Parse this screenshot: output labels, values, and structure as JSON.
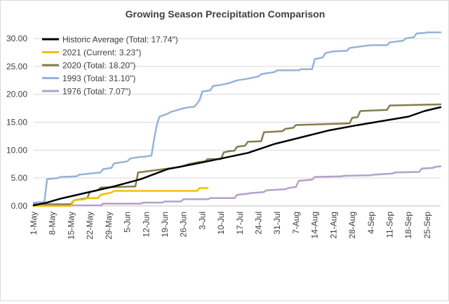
{
  "chart_data": {
    "type": "line",
    "title": "Growing Season Precipitation Comparison",
    "xlabel": "",
    "ylabel": "",
    "ylim": [
      0,
      32
    ],
    "y_ticks": [
      "0.00",
      "5.00",
      "10.00",
      "15.00",
      "20.00",
      "25.00",
      "30.00"
    ],
    "y_tick_values": [
      0,
      5,
      10,
      15,
      20,
      25,
      30
    ],
    "x_ticks": [
      "1-May",
      "8-May",
      "15-May",
      "22-May",
      "29-May",
      "5-Jun",
      "12-Jun",
      "19-Jun",
      "26-Jun",
      "3-Jul",
      "10-Jul",
      "17-Jul",
      "24-Jul",
      "31-Jul",
      "7-Aug",
      "14-Aug",
      "21-Aug",
      "28-Aug",
      "4-Sep",
      "11-Sep",
      "18-Sep",
      "25-Sep"
    ],
    "x_tick_days": [
      0,
      7,
      14,
      21,
      28,
      35,
      42,
      49,
      56,
      63,
      70,
      77,
      84,
      91,
      98,
      105,
      112,
      119,
      126,
      133,
      140,
      147
    ],
    "xlim_days": [
      0,
      152
    ],
    "grid": "horizontal",
    "legend_position": "top-left",
    "series": [
      {
        "name": "Historic Average (Total: 17.74\")",
        "color": "#000000",
        "x": [
          0,
          5,
          10,
          20,
          30,
          40,
          50,
          60,
          70,
          80,
          90,
          100,
          110,
          120,
          130,
          140,
          146,
          152
        ],
        "y": [
          0.1,
          0.6,
          1.3,
          2.4,
          3.5,
          4.8,
          6.6,
          7.5,
          8.5,
          9.5,
          11.1,
          12.3,
          13.5,
          14.4,
          15.2,
          16.0,
          17.0,
          17.7
        ]
      },
      {
        "name": "2021 (Current: 3.23\")",
        "color": "#f2c000",
        "x": [
          0,
          14,
          15,
          19,
          20,
          24,
          25,
          27,
          29,
          30,
          61,
          62,
          65
        ],
        "y": [
          0,
          0,
          1.0,
          1.2,
          1.4,
          1.4,
          2.0,
          2.2,
          2.4,
          2.7,
          2.7,
          3.2,
          3.2
        ]
      },
      {
        "name": "2020 (Total: 18.20\")",
        "color": "#847d4e",
        "x": [
          0,
          14,
          15,
          20,
          21,
          24,
          25,
          38,
          39,
          55,
          58,
          61,
          64,
          65,
          70,
          71,
          73,
          75,
          76,
          79,
          80,
          85,
          86,
          93,
          94,
          97,
          98,
          118,
          119,
          121,
          122,
          132,
          133,
          152
        ],
        "y": [
          0.3,
          0.3,
          1.0,
          1.4,
          2.5,
          2.8,
          3.3,
          3.5,
          6.0,
          7.0,
          7.5,
          7.8,
          8.0,
          8.4,
          8.4,
          9.6,
          9.8,
          9.9,
          10.6,
          10.8,
          11.5,
          11.6,
          13.2,
          13.4,
          13.8,
          14.0,
          14.5,
          14.8,
          15.8,
          15.9,
          17.0,
          17.2,
          18.0,
          18.2
        ]
      },
      {
        "name": "1993 (Total: 31.10\")",
        "color": "#95b3d7",
        "x": [
          0,
          4,
          5,
          9,
          10,
          16,
          17,
          25,
          26,
          29,
          30,
          35,
          36,
          40,
          41,
          44,
          45,
          46,
          47,
          50,
          51,
          56,
          57,
          60,
          61,
          62,
          63,
          66,
          67,
          70,
          73,
          76,
          80,
          84,
          85,
          90,
          91,
          99,
          100,
          104,
          105,
          108,
          109,
          111,
          112,
          117,
          118,
          124,
          126,
          132,
          133,
          138,
          139,
          142,
          143,
          146,
          147,
          152
        ],
        "y": [
          0.6,
          0.7,
          4.8,
          5.0,
          5.2,
          5.3,
          5.6,
          6.0,
          6.6,
          6.8,
          7.6,
          8.0,
          8.5,
          8.8,
          8.8,
          9.0,
          12.0,
          14.5,
          16.0,
          16.5,
          16.8,
          17.5,
          17.6,
          17.8,
          18.3,
          19.0,
          20.5,
          20.7,
          21.5,
          21.7,
          22.0,
          22.5,
          22.8,
          23.2,
          23.6,
          24.0,
          24.3,
          24.3,
          24.5,
          24.5,
          26.3,
          26.6,
          27.4,
          27.6,
          27.7,
          27.8,
          28.3,
          28.7,
          28.8,
          28.8,
          29.3,
          29.6,
          30.0,
          30.2,
          30.9,
          31.0,
          31.1,
          31.1
        ]
      },
      {
        "name": "1976 (Total: 7.07\")",
        "color": "#b4a0cc",
        "x": [
          0,
          25,
          26,
          40,
          41,
          48,
          49,
          55,
          56,
          65,
          66,
          75,
          76,
          80,
          81,
          86,
          87,
          94,
          95,
          98,
          99,
          104,
          105,
          115,
          116,
          126,
          127,
          134,
          135,
          144,
          145,
          149,
          150,
          152
        ],
        "y": [
          0.1,
          0.1,
          0.4,
          0.4,
          0.6,
          0.6,
          0.8,
          0.8,
          1.2,
          1.2,
          1.4,
          1.4,
          2.0,
          2.2,
          2.3,
          2.5,
          2.8,
          3.0,
          3.2,
          3.4,
          4.5,
          4.7,
          5.2,
          5.3,
          5.4,
          5.5,
          5.6,
          5.8,
          6.0,
          6.1,
          6.7,
          6.8,
          7.0,
          7.1
        ]
      }
    ]
  }
}
